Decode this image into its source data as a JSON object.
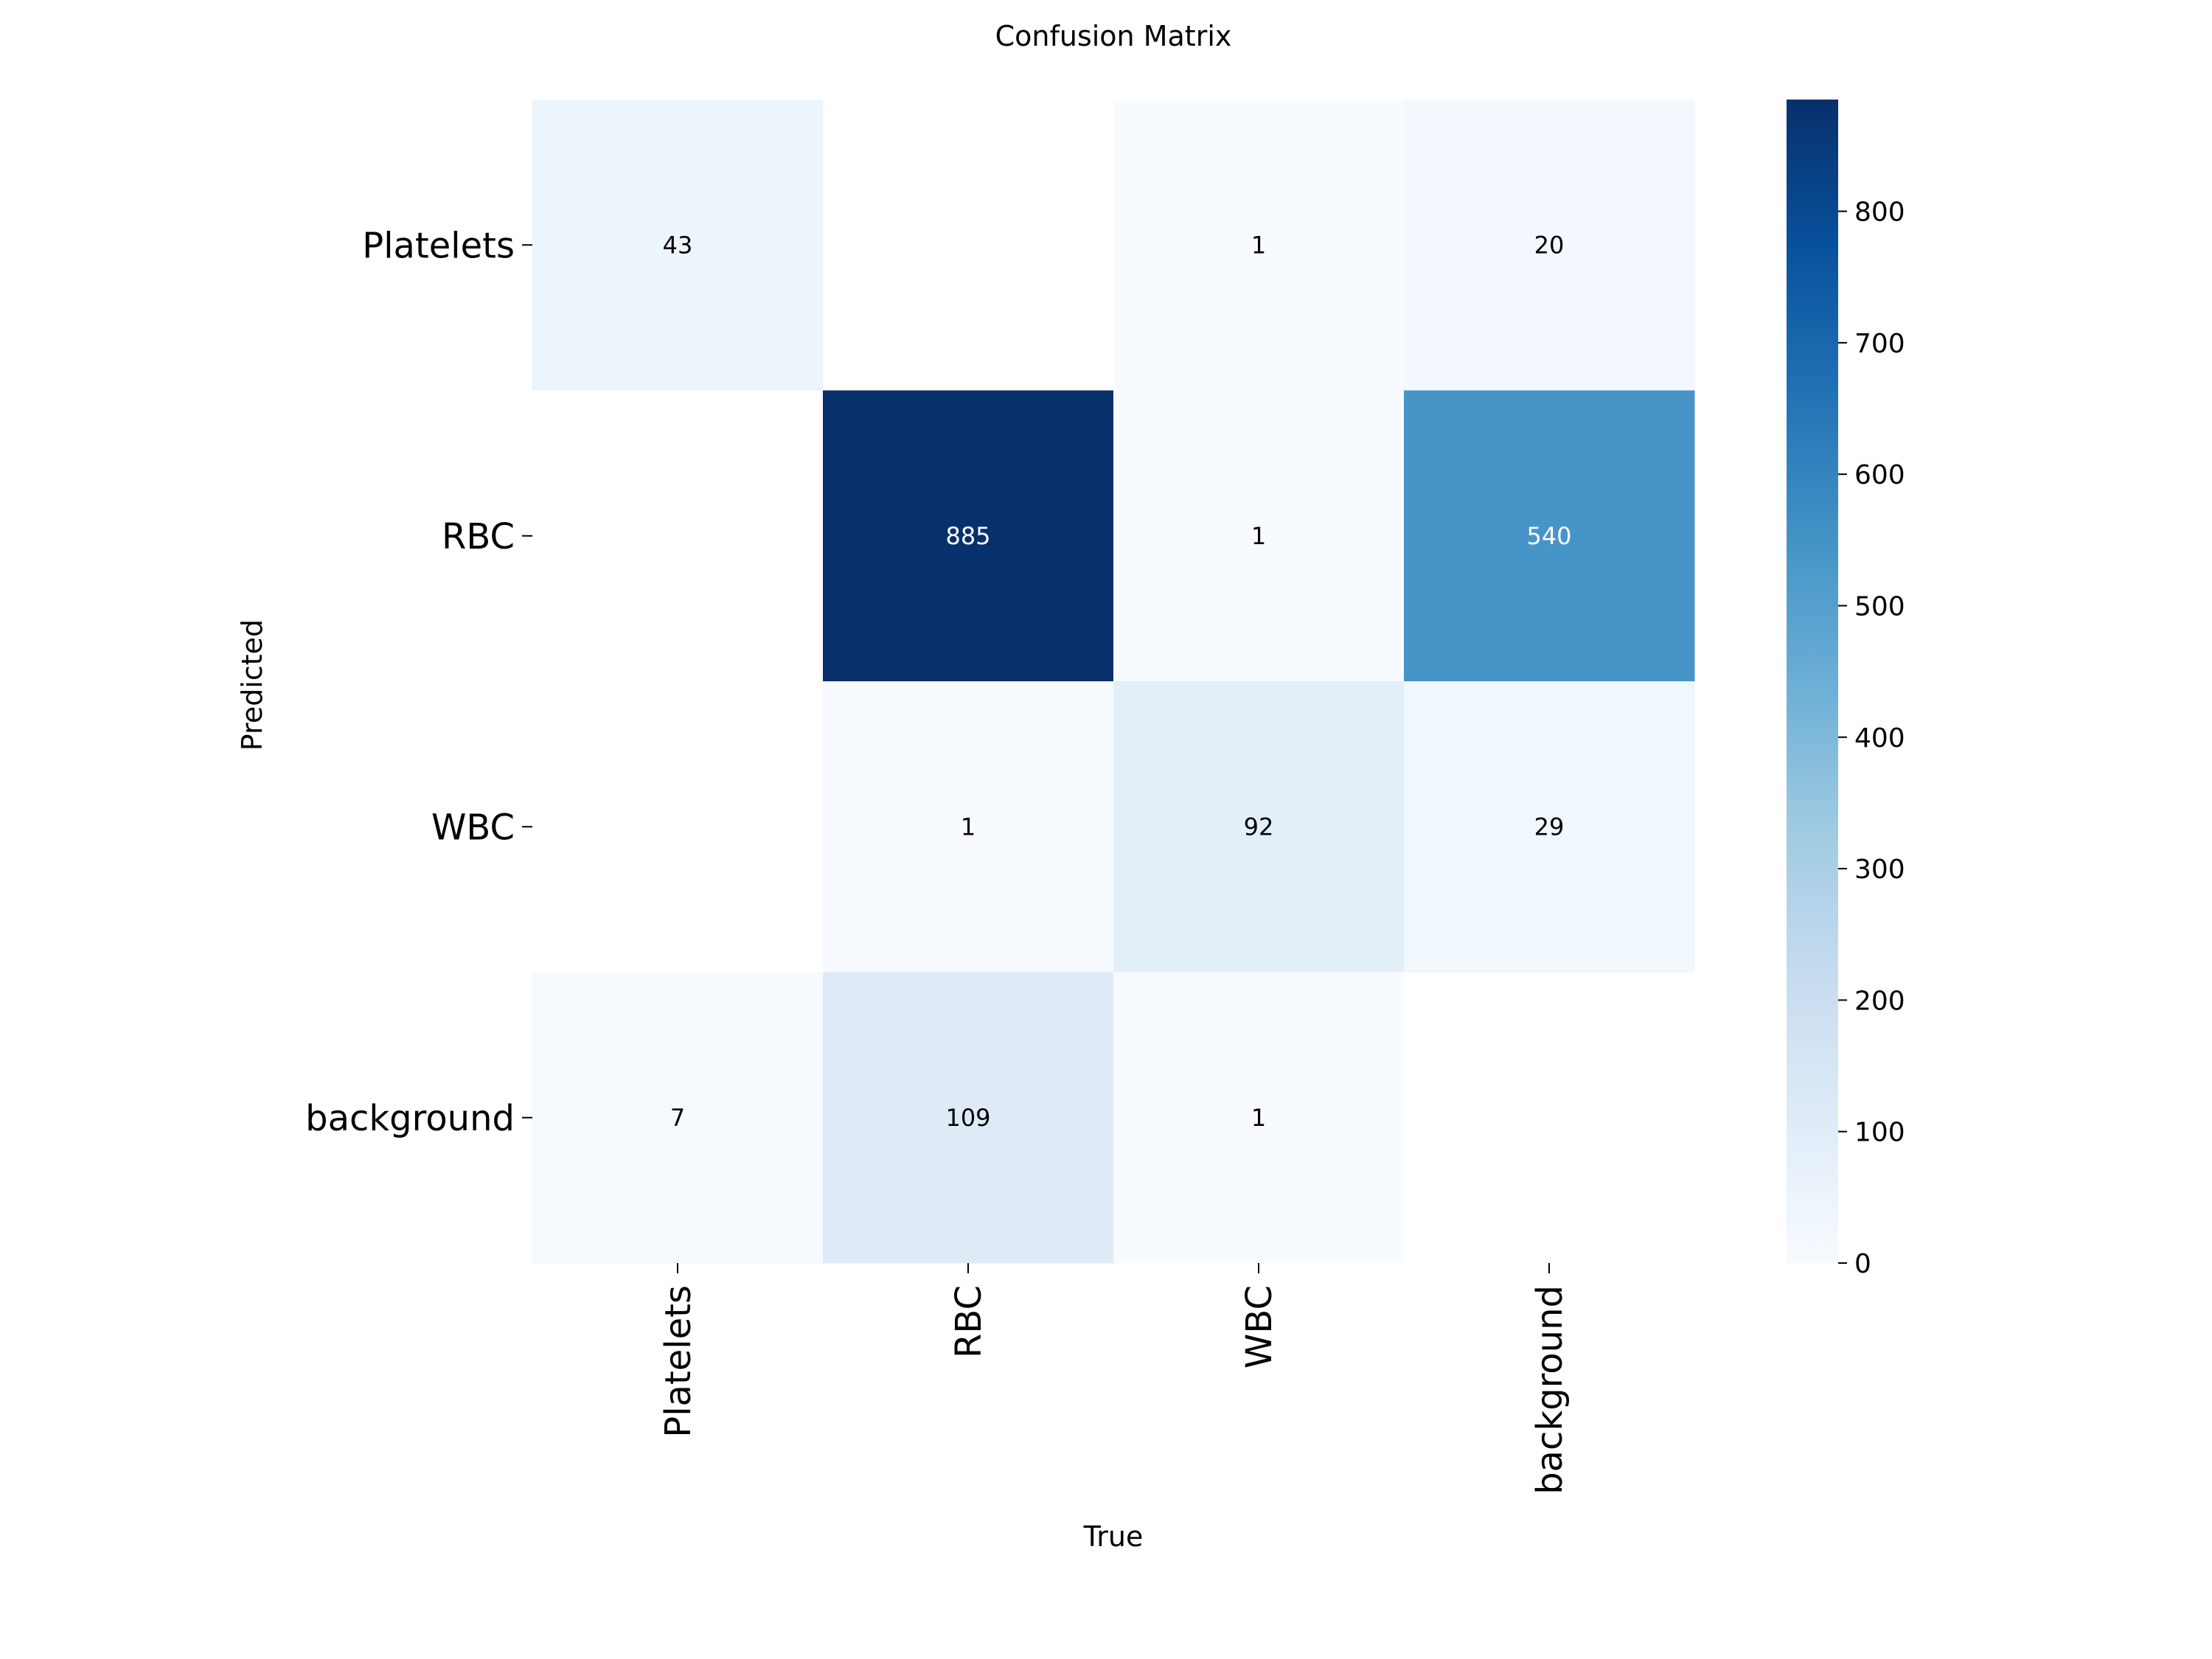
{
  "chart_data": {
    "type": "heatmap",
    "title": "Confusion Matrix",
    "xlabel": "True",
    "ylabel": "Predicted",
    "x_categories": [
      "Platelets",
      "RBC",
      "WBC",
      "background"
    ],
    "y_categories": [
      "Platelets",
      "RBC",
      "WBC",
      "background"
    ],
    "values": [
      [
        43,
        null,
        1,
        20
      ],
      [
        null,
        885,
        1,
        540
      ],
      [
        null,
        1,
        92,
        29
      ],
      [
        7,
        109,
        1,
        null
      ]
    ],
    "colormap": "Blues",
    "colorbar": {
      "range": [
        0,
        885
      ],
      "ticks": [
        0,
        100,
        200,
        300,
        400,
        500,
        600,
        700,
        800
      ]
    }
  }
}
